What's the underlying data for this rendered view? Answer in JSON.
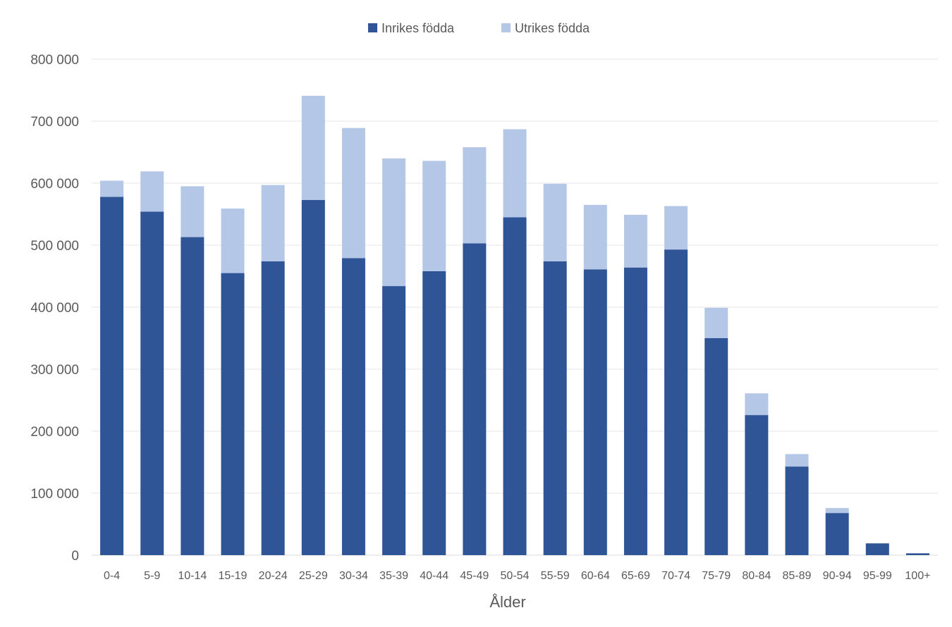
{
  "chart_data": {
    "type": "bar",
    "stacked": true,
    "title": "",
    "xlabel": "Ålder",
    "ylabel": "",
    "ylim": [
      0,
      800000
    ],
    "yticks": [
      0,
      100000,
      200000,
      300000,
      400000,
      500000,
      600000,
      700000,
      800000
    ],
    "ytick_labels": [
      "0",
      "100 000",
      "200 000",
      "300 000",
      "400 000",
      "500 000",
      "600 000",
      "700 000",
      "800 000"
    ],
    "grid": true,
    "legend_position": "top",
    "categories": [
      "0-4",
      "5-9",
      "10-14",
      "15-19",
      "20-24",
      "25-29",
      "30-34",
      "35-39",
      "40-44",
      "45-49",
      "50-54",
      "55-59",
      "60-64",
      "65-69",
      "70-74",
      "75-79",
      "80-84",
      "85-89",
      "90-94",
      "95-99",
      "100+"
    ],
    "series": [
      {
        "name": "Inrikes födda",
        "color": "#2f5597",
        "values": [
          578000,
          554000,
          513000,
          455000,
          474000,
          573000,
          479000,
          434000,
          458000,
          503000,
          545000,
          474000,
          461000,
          464000,
          493000,
          350000,
          226000,
          143000,
          68000,
          19000,
          3000
        ]
      },
      {
        "name": "Utrikes födda",
        "color": "#b4c7e7",
        "values": [
          26000,
          65000,
          82000,
          104000,
          123000,
          168000,
          210000,
          206000,
          178000,
          155000,
          142000,
          125000,
          104000,
          85000,
          70000,
          49000,
          35000,
          20000,
          8000,
          0,
          0
        ]
      }
    ]
  }
}
